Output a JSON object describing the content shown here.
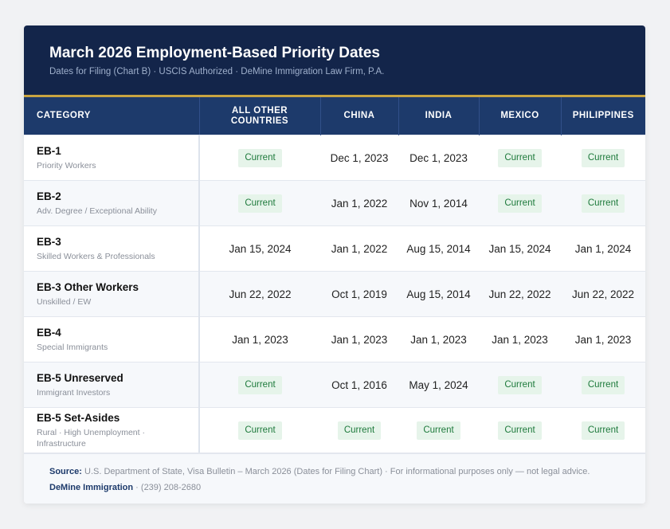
{
  "header": {
    "title": "March 2026 Employment-Based Priority Dates",
    "subtitle": "Dates for Filing (Chart B) · USCIS Authorized · DeMine Immigration Law Firm, P.A."
  },
  "columns": [
    "CATEGORY",
    "ALL OTHER COUNTRIES",
    "CHINA",
    "INDIA",
    "MEXICO",
    "PHILIPPINES"
  ],
  "rows": [
    {
      "name": "EB-1",
      "desc": "Priority Workers",
      "values": [
        "Current",
        "Dec 1, 2023",
        "Dec 1, 2023",
        "Current",
        "Current"
      ]
    },
    {
      "name": "EB-2",
      "desc": "Adv. Degree / Exceptional Ability",
      "values": [
        "Current",
        "Jan 1, 2022",
        "Nov 1, 2014",
        "Current",
        "Current"
      ]
    },
    {
      "name": "EB-3",
      "desc": "Skilled Workers & Professionals",
      "values": [
        "Jan 15, 2024",
        "Jan 1, 2022",
        "Aug 15, 2014",
        "Jan 15, 2024",
        "Jan 1, 2024"
      ]
    },
    {
      "name": "EB-3 Other Workers",
      "desc": "Unskilled / EW",
      "values": [
        "Jun 22, 2022",
        "Oct 1, 2019",
        "Aug 15, 2014",
        "Jun 22, 2022",
        "Jun 22, 2022"
      ]
    },
    {
      "name": "EB-4",
      "desc": "Special Immigrants",
      "values": [
        "Jan 1, 2023",
        "Jan 1, 2023",
        "Jan 1, 2023",
        "Jan 1, 2023",
        "Jan 1, 2023"
      ]
    },
    {
      "name": "EB-5 Unreserved",
      "desc": "Immigrant Investors",
      "values": [
        "Current",
        "Oct 1, 2016",
        "May 1, 2024",
        "Current",
        "Current"
      ]
    },
    {
      "name": "EB-5 Set-Asides",
      "desc": "Rural · High Unemployment · Infrastructure",
      "values": [
        "Current",
        "Current",
        "Current",
        "Current",
        "Current"
      ]
    }
  ],
  "footer": {
    "source_label": "Source:",
    "source_text": " U.S. Department of State, Visa Bulletin – March 2026 (Dates for Filing Chart) · For informational purposes only — not legal advice.",
    "firm": "DeMine Immigration",
    "phone": " · (239) 208-2680"
  },
  "colors": {
    "navy": "#13254a",
    "header_row": "#1d3a6b",
    "gold": "#c9a441",
    "current_bg": "#e6f4ea",
    "current_text": "#1e7a3c"
  }
}
